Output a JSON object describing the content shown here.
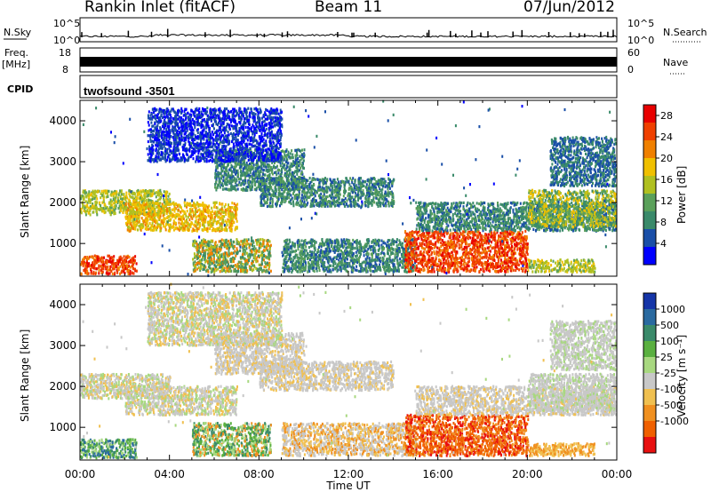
{
  "header": {
    "title": "Rankin Inlet (fitACF)",
    "beam": "Beam 11",
    "date": "07/Jun/2012"
  },
  "panels": {
    "nsky_label": "N.Sky",
    "nsearch_label": "N.Search",
    "nsky_ticks": [
      "10^5",
      "10^0"
    ],
    "nsearch_ticks": [
      "10^5",
      "10^0"
    ],
    "freq_label": "Freq.",
    "freq_unit": "[MHz]",
    "freq_ticks": [
      "18",
      "8"
    ],
    "nave_label": "Nave",
    "nave_ticks": [
      "60",
      "0"
    ],
    "cpid_label": "CPID",
    "cpid_value": "twofsound -3501"
  },
  "chart_data": [
    {
      "type": "heatmap",
      "title": "",
      "xlabel": "",
      "ylabel": "Slant Range [km]",
      "x_ticks": [
        "00:00",
        "04:00",
        "08:00",
        "12:00",
        "16:00",
        "20:00",
        "00:00"
      ],
      "y_ticks": [
        1000,
        2000,
        3000,
        4000
      ],
      "ylim": [
        200,
        4500
      ],
      "colorbar": {
        "label": "Power [dB]",
        "ticks": [
          4,
          8,
          12,
          16,
          20,
          24,
          28
        ],
        "range": [
          0,
          30
        ],
        "colors": [
          "#0000ff",
          "#1a4fa8",
          "#3a8a6a",
          "#5aa05a",
          "#b0c020",
          "#f0c000",
          "#f08000",
          "#f04000",
          "#e80000"
        ]
      }
    },
    {
      "type": "heatmap",
      "title": "",
      "xlabel": "Time UT",
      "ylabel": "Slant Range [km]",
      "x_ticks": [
        "00:00",
        "04:00",
        "08:00",
        "12:00",
        "16:00",
        "20:00",
        "00:00"
      ],
      "y_ticks": [
        1000,
        2000,
        3000,
        4000
      ],
      "ylim": [
        200,
        4500
      ],
      "colorbar": {
        "label": "Velocity [m s⁻¹]",
        "ticks": [
          "1000",
          "500",
          "100",
          "25",
          "-25",
          "-100",
          "-500",
          "-1000"
        ],
        "colors": [
          "#1535a8",
          "#2a6aa0",
          "#3a8a6a",
          "#5ab040",
          "#a8d880",
          "#c8c8c8",
          "#f0c050",
          "#f09020",
          "#f06000",
          "#e81010"
        ]
      }
    }
  ]
}
